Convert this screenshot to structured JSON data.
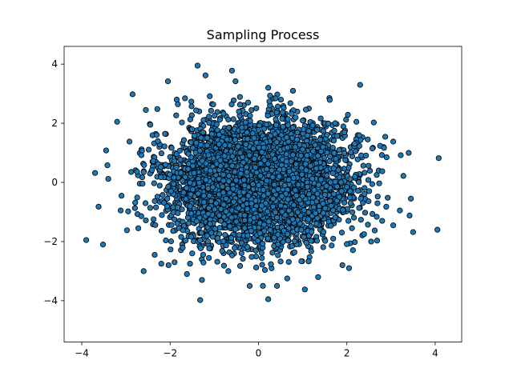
{
  "chart_data": {
    "type": "scatter",
    "title": "Sampling Process",
    "xlabel": "",
    "ylabel": "",
    "xlim": [
      -4.4,
      4.6
    ],
    "ylim": [
      -5.4,
      4.6
    ],
    "xticks": [
      -4,
      -2,
      0,
      2,
      4
    ],
    "yticks": [
      -4,
      -2,
      0,
      2,
      4
    ],
    "grid": false,
    "legend": "none",
    "marker_color": "#1f77b4",
    "marker_edge_color": "#000000",
    "distribution": {
      "kind": "bivariate-normal",
      "mean": [
        0,
        0
      ],
      "std": [
        1,
        1
      ],
      "count": 5000
    },
    "series": [
      {
        "outliers": [
          [
            -3.9,
            -1.95
          ],
          [
            -3.7,
            0.32
          ],
          [
            -3.62,
            -0.82
          ],
          [
            -3.52,
            -2.1
          ],
          [
            -3.45,
            1.08
          ],
          [
            -3.42,
            0.58
          ],
          [
            -3.4,
            0.12
          ],
          [
            -3.2,
            2.05
          ],
          [
            -3.12,
            -0.95
          ],
          [
            -3.1,
            -0.45
          ],
          [
            -2.95,
            -0.98
          ],
          [
            -2.92,
            1.38
          ],
          [
            -2.85,
            2.98
          ],
          [
            -2.72,
            -1.55
          ],
          [
            -2.65,
            0.92
          ],
          [
            -2.6,
            -3.0
          ],
          [
            -2.55,
            2.45
          ],
          [
            -2.45,
            1.95
          ],
          [
            -2.35,
            -2.45
          ],
          [
            -2.2,
            -2.75
          ],
          [
            -2.05,
            3.42
          ],
          [
            -1.9,
            -2.7
          ],
          [
            -1.85,
            2.8
          ],
          [
            -1.62,
            -3.1
          ],
          [
            -1.55,
            -2.75
          ],
          [
            -1.5,
            -2.4
          ],
          [
            -1.38,
            3.95
          ],
          [
            -1.32,
            -3.98
          ],
          [
            -1.28,
            -3.3
          ],
          [
            -1.2,
            3.62
          ],
          [
            -0.6,
            3.78
          ],
          [
            -0.52,
            3.42
          ],
          [
            -0.2,
            -3.5
          ],
          [
            0.1,
            -3.5
          ],
          [
            0.22,
            -3.95
          ],
          [
            0.22,
            3.2
          ],
          [
            0.42,
            -3.5
          ],
          [
            0.65,
            -3.25
          ],
          [
            0.78,
            3.1
          ],
          [
            1.05,
            -3.62
          ],
          [
            1.35,
            -3.2
          ],
          [
            1.9,
            -2.8
          ],
          [
            2.05,
            -2.9
          ],
          [
            2.3,
            3.3
          ],
          [
            2.55,
            -2.0
          ],
          [
            2.8,
            -1.3
          ],
          [
            2.9,
            0.85
          ],
          [
            3.05,
            1.38
          ],
          [
            3.05,
            -1.45
          ],
          [
            3.2,
            -0.95
          ],
          [
            3.22,
            0.92
          ],
          [
            3.28,
            0.22
          ],
          [
            3.4,
            1.0
          ],
          [
            3.42,
            -1.12
          ],
          [
            3.45,
            -0.55
          ],
          [
            3.5,
            -1.68
          ],
          [
            4.05,
            -1.6
          ],
          [
            4.08,
            0.82
          ]
        ]
      }
    ]
  }
}
